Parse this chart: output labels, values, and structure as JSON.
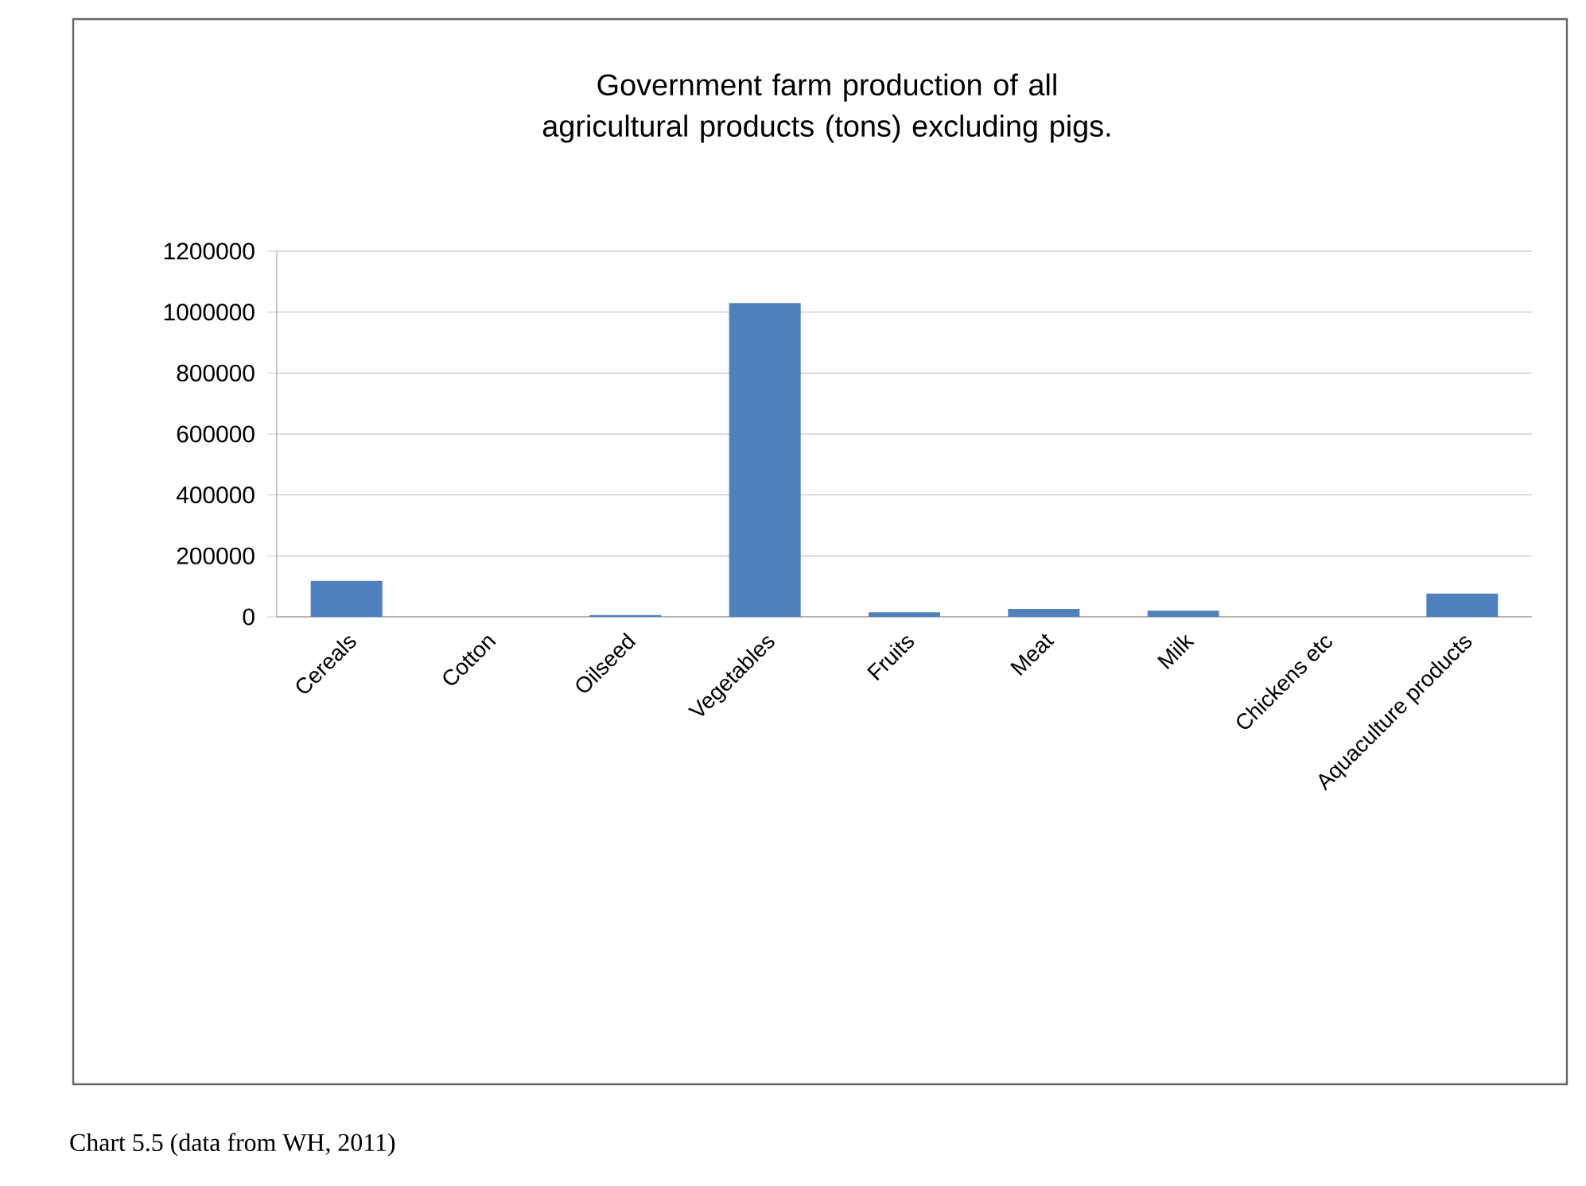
{
  "chart_data": {
    "type": "bar",
    "title": "Government farm production of all agricultural products (tons) excluding pigs.",
    "categories": [
      "Cereals",
      "Cotton",
      "Oilseed",
      "Vegetables",
      "Fruits",
      "Meat",
      "Milk",
      "Chickens etc",
      "Aquaculture products"
    ],
    "values": [
      118000,
      0,
      6000,
      1030000,
      15000,
      26000,
      20000,
      0,
      76000
    ],
    "color": "#4f81bd",
    "ylim": [
      0,
      1200000
    ],
    "yticks": [
      0,
      200000,
      400000,
      600000,
      800000,
      1000000,
      1200000
    ],
    "grid": "y",
    "annotations": [
      "Chart 5.5 (data from WH, 2011)"
    ]
  }
}
